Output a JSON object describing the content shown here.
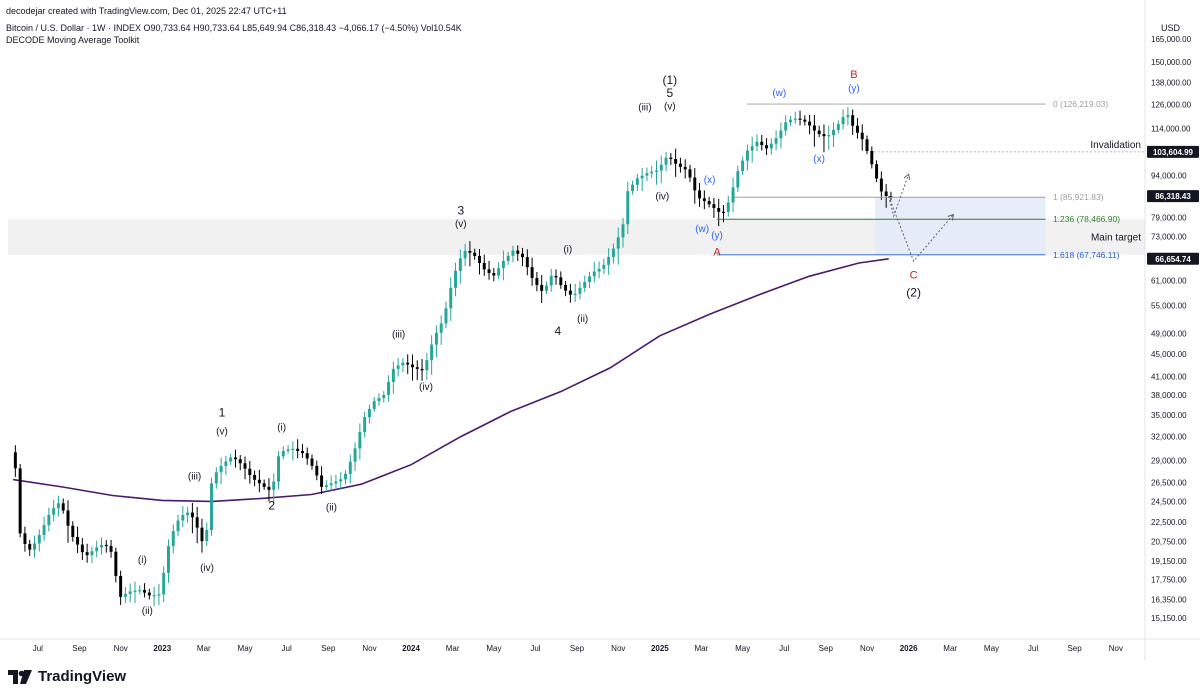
{
  "header": {
    "creator_line": "decodejar created with TradingView.com, Dec 01, 2025 22:47 UTC+11",
    "symbol_line": "Bitcoin / U.S. Dollar · 1W · INDEX  O90,733.64  H90,733.64  L85,649.94  C86,318.43  −4,066.17 (−4.50%)  Vol10.54K",
    "indicator_line": "DECODE Moving Average Toolkit"
  },
  "footer": {
    "brand": "TradingView"
  },
  "colors": {
    "up": "#26a69a",
    "down": "#000000",
    "ma": "#4a1a6e",
    "fib_red": "#c62828",
    "fib_green": "#2e7d32",
    "fib_blue": "#1e5fd8",
    "wave_blue": "#2962ff"
  },
  "chart_data": {
    "type": "candlestick",
    "title": "",
    "currency_label": "USD",
    "scale": "log",
    "ylim": [
      14000,
      180000
    ],
    "y_ticks": [
      165000,
      150000,
      138000,
      126000,
      114000,
      103604.99,
      94000,
      86318.43,
      79000,
      73000,
      66654.74,
      61000,
      55000,
      49000,
      45000,
      41000,
      38000,
      35000,
      32000,
      29000,
      26500,
      24500,
      22500,
      20750,
      19150,
      17750,
      16350,
      15150
    ],
    "y_tick_labels": [
      "165,000.00",
      "150,000.00",
      "138,000.00",
      "126,000.00",
      "114,000.00",
      "103,604.99",
      "94,000.00",
      "86,318.43",
      "79,000.00",
      "73,000.00",
      "66,654.74",
      "61,000.00",
      "55,000.00",
      "49,000.00",
      "45,000.00",
      "41,000.00",
      "38,000.00",
      "35,000.00",
      "32,000.00",
      "29,000.00",
      "26,500.00",
      "24,500.00",
      "22,500.00",
      "20,750.00",
      "19,150.00",
      "17,750.00",
      "16,350.00",
      "15,150.00"
    ],
    "price_tags": [
      {
        "value": 103604.99,
        "label": "103,604.99"
      },
      {
        "value": 86318.43,
        "label": "86,318.43"
      },
      {
        "value": 66654.74,
        "label": "66,654.74"
      }
    ],
    "x_ticks": [
      {
        "label": "Jul",
        "t": 2022.5,
        "bold": false
      },
      {
        "label": "Sep",
        "t": 2022.667,
        "bold": false
      },
      {
        "label": "Nov",
        "t": 2022.833,
        "bold": false
      },
      {
        "label": "2023",
        "t": 2023.0,
        "bold": true
      },
      {
        "label": "Mar",
        "t": 2023.167,
        "bold": false
      },
      {
        "label": "May",
        "t": 2023.333,
        "bold": false
      },
      {
        "label": "Jul",
        "t": 2023.5,
        "bold": false
      },
      {
        "label": "Sep",
        "t": 2023.667,
        "bold": false
      },
      {
        "label": "Nov",
        "t": 2023.833,
        "bold": false
      },
      {
        "label": "2024",
        "t": 2024.0,
        "bold": true
      },
      {
        "label": "Mar",
        "t": 2024.167,
        "bold": false
      },
      {
        "label": "May",
        "t": 2024.333,
        "bold": false
      },
      {
        "label": "Jul",
        "t": 2024.5,
        "bold": false
      },
      {
        "label": "Sep",
        "t": 2024.667,
        "bold": false
      },
      {
        "label": "Nov",
        "t": 2024.833,
        "bold": false
      },
      {
        "label": "2025",
        "t": 2025.0,
        "bold": true
      },
      {
        "label": "Mar",
        "t": 2025.167,
        "bold": false
      },
      {
        "label": "May",
        "t": 2025.333,
        "bold": false
      },
      {
        "label": "Jul",
        "t": 2025.5,
        "bold": false
      },
      {
        "label": "Sep",
        "t": 2025.667,
        "bold": false
      },
      {
        "label": "Nov",
        "t": 2025.833,
        "bold": false
      },
      {
        "label": "2026",
        "t": 2026.0,
        "bold": true
      },
      {
        "label": "Mar",
        "t": 2026.167,
        "bold": false
      },
      {
        "label": "May",
        "t": 2026.333,
        "bold": false
      },
      {
        "label": "Jul",
        "t": 2026.5,
        "bold": false
      },
      {
        "label": "Sep",
        "t": 2026.667,
        "bold": false
      },
      {
        "label": "Nov",
        "t": 2026.833,
        "bold": false
      }
    ],
    "price_path": [
      [
        2022.4,
        30000
      ],
      [
        2022.42,
        28000
      ],
      [
        2022.44,
        21000
      ],
      [
        2022.48,
        20000
      ],
      [
        2022.52,
        21500
      ],
      [
        2022.56,
        23500
      ],
      [
        2022.6,
        24500
      ],
      [
        2022.64,
        21500
      ],
      [
        2022.7,
        19500
      ],
      [
        2022.76,
        20500
      ],
      [
        2022.8,
        20300
      ],
      [
        2022.84,
        16500
      ],
      [
        2022.88,
        16900
      ],
      [
        2022.92,
        17000
      ],
      [
        2022.96,
        16600
      ],
      [
        2023.0,
        16700
      ],
      [
        2023.04,
        21000
      ],
      [
        2023.08,
        23000
      ],
      [
        2023.12,
        23500
      ],
      [
        2023.16,
        21500
      ],
      [
        2023.18,
        20000
      ],
      [
        2023.21,
        27000
      ],
      [
        2023.25,
        28500
      ],
      [
        2023.29,
        29500
      ],
      [
        2023.33,
        28500
      ],
      [
        2023.37,
        27000
      ],
      [
        2023.42,
        26000
      ],
      [
        2023.45,
        25500
      ],
      [
        2023.48,
        30000
      ],
      [
        2023.53,
        30500
      ],
      [
        2023.58,
        29800
      ],
      [
        2023.62,
        28000
      ],
      [
        2023.65,
        26000
      ],
      [
        2023.7,
        26500
      ],
      [
        2023.74,
        27000
      ],
      [
        2023.78,
        30000
      ],
      [
        2023.82,
        34500
      ],
      [
        2023.86,
        37000
      ],
      [
        2023.9,
        38000
      ],
      [
        2023.94,
        42500
      ],
      [
        2023.98,
        43500
      ],
      [
        2024.02,
        42500
      ],
      [
        2024.06,
        42000
      ],
      [
        2024.1,
        48000
      ],
      [
        2024.14,
        52000
      ],
      [
        2024.18,
        62000
      ],
      [
        2024.22,
        69000
      ],
      [
        2024.26,
        68000
      ],
      [
        2024.3,
        64000
      ],
      [
        2024.34,
        62000
      ],
      [
        2024.38,
        66000
      ],
      [
        2024.42,
        69000
      ],
      [
        2024.46,
        67000
      ],
      [
        2024.5,
        61000
      ],
      [
        2024.54,
        58000
      ],
      [
        2024.58,
        63000
      ],
      [
        2024.62,
        59000
      ],
      [
        2024.66,
        57000
      ],
      [
        2024.7,
        60000
      ],
      [
        2024.74,
        63000
      ],
      [
        2024.78,
        64500
      ],
      [
        2024.82,
        69000
      ],
      [
        2024.86,
        76000
      ],
      [
        2024.88,
        88000
      ],
      [
        2024.92,
        93000
      ],
      [
        2024.96,
        95000
      ],
      [
        2025.0,
        96000
      ],
      [
        2025.04,
        102000
      ],
      [
        2025.08,
        98000
      ],
      [
        2025.12,
        96000
      ],
      [
        2025.16,
        86000
      ],
      [
        2025.2,
        84000
      ],
      [
        2025.23,
        82000
      ],
      [
        2025.26,
        80000
      ],
      [
        2025.29,
        85000
      ],
      [
        2025.32,
        95000
      ],
      [
        2025.36,
        104000
      ],
      [
        2025.4,
        108000
      ],
      [
        2025.44,
        105000
      ],
      [
        2025.48,
        110000
      ],
      [
        2025.52,
        118000
      ],
      [
        2025.56,
        119000
      ],
      [
        2025.6,
        117000
      ],
      [
        2025.64,
        112000
      ],
      [
        2025.68,
        110000
      ],
      [
        2025.72,
        115000
      ],
      [
        2025.76,
        122000
      ],
      [
        2025.79,
        114000
      ],
      [
        2025.82,
        110000
      ],
      [
        2025.85,
        102000
      ],
      [
        2025.88,
        93000
      ],
      [
        2025.9,
        88000
      ],
      [
        2025.92,
        86300
      ]
    ],
    "moving_average": [
      [
        2022.4,
        26800
      ],
      [
        2022.6,
        26000
      ],
      [
        2022.8,
        25100
      ],
      [
        2023.0,
        24600
      ],
      [
        2023.2,
        24500
      ],
      [
        2023.4,
        24800
      ],
      [
        2023.6,
        25200
      ],
      [
        2023.8,
        26300
      ],
      [
        2024.0,
        28500
      ],
      [
        2024.2,
        32000
      ],
      [
        2024.4,
        35500
      ],
      [
        2024.6,
        38500
      ],
      [
        2024.8,
        42500
      ],
      [
        2025.0,
        48500
      ],
      [
        2025.2,
        53000
      ],
      [
        2025.4,
        57500
      ],
      [
        2025.6,
        62000
      ],
      [
        2025.8,
        65500
      ],
      [
        2025.92,
        66654.74
      ]
    ],
    "fib_levels": [
      {
        "label": "0 (126,219.03)",
        "value": 126219.03,
        "color": "#9e9e9e"
      },
      {
        "label": "1 (85,921.83)",
        "value": 85921.83,
        "color": "#9e9e9e"
      },
      {
        "label": "1.236 (78,466.90)",
        "value": 78466.9,
        "color": "#2e7d32"
      },
      {
        "label": "1.618 (67,746.11)",
        "value": 67746.11,
        "color": "#1e5fd8"
      }
    ],
    "annotations": {
      "invalidation": {
        "label": "Invalidation",
        "value": 103604.99
      },
      "main_target": {
        "label": "Main target",
        "from": 67746.11,
        "to": 78466.9
      }
    },
    "wave_labels": [
      {
        "text": "1",
        "t": 2023.24,
        "v": 34800,
        "size": 12,
        "color": "#131722"
      },
      {
        "text": "(v)",
        "t": 2023.24,
        "v": 32300,
        "size": 10,
        "color": "#131722"
      },
      {
        "text": "(i)",
        "t": 2023.48,
        "v": 32800,
        "size": 10,
        "color": "#131722"
      },
      {
        "text": "(iii)",
        "t": 2023.13,
        "v": 26800,
        "size": 10,
        "color": "#131722"
      },
      {
        "text": "2",
        "t": 2023.44,
        "v": 23700,
        "size": 12,
        "color": "#131722"
      },
      {
        "text": "(ii)",
        "t": 2023.68,
        "v": 23600,
        "size": 10,
        "color": "#131722"
      },
      {
        "text": "(iv)",
        "t": 2023.18,
        "v": 18400,
        "size": 10,
        "color": "#131722"
      },
      {
        "text": "(i)",
        "t": 2022.92,
        "v": 19000,
        "size": 10,
        "color": "#131722"
      },
      {
        "text": "(ii)",
        "t": 2022.94,
        "v": 15400,
        "size": 10,
        "color": "#131722"
      },
      {
        "text": "(iii)",
        "t": 2023.95,
        "v": 48200,
        "size": 10,
        "color": "#131722"
      },
      {
        "text": "(iv)",
        "t": 2024.06,
        "v": 38800,
        "size": 10,
        "color": "#131722"
      },
      {
        "text": "3",
        "t": 2024.2,
        "v": 80000,
        "size": 12,
        "color": "#131722"
      },
      {
        "text": "(v)",
        "t": 2024.2,
        "v": 76000,
        "size": 10,
        "color": "#131722"
      },
      {
        "text": "(i)",
        "t": 2024.63,
        "v": 68400,
        "size": 10,
        "color": "#131722"
      },
      {
        "text": "4",
        "t": 2024.59,
        "v": 48700,
        "size": 12,
        "color": "#131722"
      },
      {
        "text": "(ii)",
        "t": 2024.69,
        "v": 51400,
        "size": 10,
        "color": "#131722"
      },
      {
        "text": "(1)",
        "t": 2025.04,
        "v": 137000,
        "size": 12,
        "color": "#131722"
      },
      {
        "text": "5",
        "t": 2025.04,
        "v": 130000,
        "size": 12,
        "color": "#131722"
      },
      {
        "text": "(v)",
        "t": 2025.04,
        "v": 123500,
        "size": 10,
        "color": "#131722"
      },
      {
        "text": "(iii)",
        "t": 2024.94,
        "v": 123000,
        "size": 10,
        "color": "#131722"
      },
      {
        "text": "(iv)",
        "t": 2025.01,
        "v": 85200,
        "size": 10,
        "color": "#131722"
      },
      {
        "text": "(x)",
        "t": 2025.2,
        "v": 91200,
        "size": 10,
        "color": "#2962ff"
      },
      {
        "text": "(w)",
        "t": 2025.17,
        "v": 74500,
        "size": 10,
        "color": "#2962ff"
      },
      {
        "text": "(y)",
        "t": 2025.23,
        "v": 72500,
        "size": 10,
        "color": "#2962ff"
      },
      {
        "text": "A",
        "t": 2025.23,
        "v": 67500,
        "size": 11,
        "color": "#c62828"
      },
      {
        "text": "(w)",
        "t": 2025.48,
        "v": 130500,
        "size": 10,
        "color": "#2962ff"
      },
      {
        "text": "(x)",
        "t": 2025.64,
        "v": 99300,
        "size": 10,
        "color": "#2962ff"
      },
      {
        "text": "B",
        "t": 2025.78,
        "v": 140500,
        "size": 11,
        "color": "#c62828"
      },
      {
        "text": "(y)",
        "t": 2025.78,
        "v": 133000,
        "size": 10,
        "color": "#2962ff"
      },
      {
        "text": "C",
        "t": 2026.02,
        "v": 61500,
        "size": 11,
        "color": "#c62828"
      },
      {
        "text": "(2)",
        "t": 2026.02,
        "v": 57000,
        "size": 12,
        "color": "#131722"
      }
    ],
    "projection": [
      [
        2025.92,
        86300
      ],
      [
        2025.94,
        79500
      ],
      [
        2026.0,
        94500
      ]
    ],
    "projection2": [
      [
        2025.92,
        86300
      ],
      [
        2026.02,
        66000
      ],
      [
        2026.18,
        80000
      ]
    ],
    "grid": false,
    "legend": "none"
  }
}
